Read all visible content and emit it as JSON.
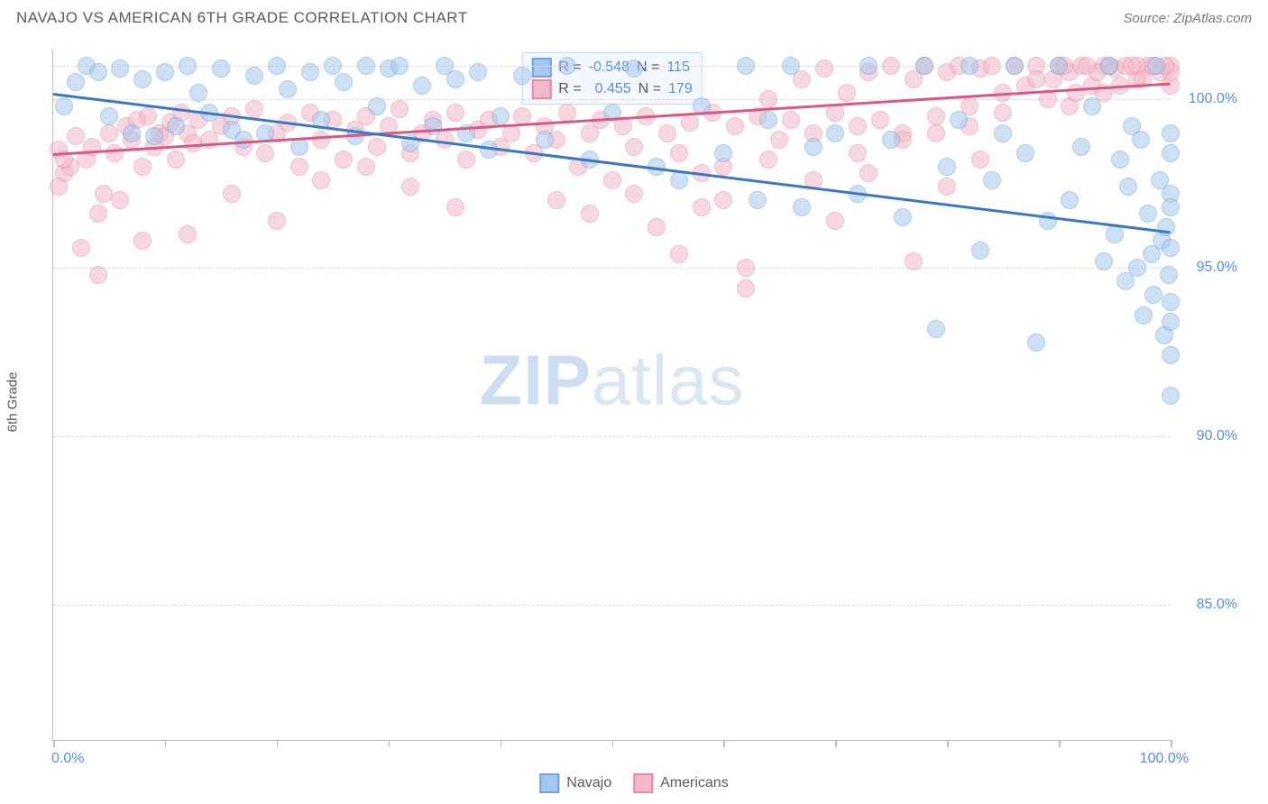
{
  "title": "NAVAJO VS AMERICAN 6TH GRADE CORRELATION CHART",
  "source": "Source: ZipAtlas.com",
  "ylabel": "6th Grade",
  "watermark": {
    "bold": "ZIP",
    "light": "atlas"
  },
  "chart": {
    "type": "scatter",
    "xlim": [
      0,
      100
    ],
    "ylim": [
      81,
      101.5
    ],
    "x_tick_positions": [
      0,
      10,
      20,
      30,
      40,
      50,
      60,
      70,
      80,
      90,
      100
    ],
    "x_tick_labels": {
      "left": "0.0%",
      "right": "100.0%"
    },
    "y_gridlines": [
      85,
      90,
      95,
      100,
      101
    ],
    "y_tick_labels": {
      "85": "85.0%",
      "90": "90.0%",
      "95": "95.0%",
      "100": "100.0%"
    },
    "background_color": "#ffffff",
    "grid_color": "#d9d9d9",
    "axis_color": "#bdbdbd",
    "label_color": "#5a8fd6",
    "marker_radius": 10,
    "marker_opacity": 0.55,
    "series": {
      "navajo": {
        "label": "Navajo",
        "fill": "#a7c7ec",
        "stroke": "#6fa3df",
        "r_value": "-0.548",
        "n_value": "115",
        "trend": {
          "x1": 0,
          "y1": 100.2,
          "x2": 100,
          "y2": 96.1,
          "color": "#3b78c4",
          "width": 2.5
        },
        "points": [
          [
            1,
            99.8
          ],
          [
            2,
            100.5
          ],
          [
            3,
            101
          ],
          [
            4,
            100.8
          ],
          [
            5,
            99.5
          ],
          [
            6,
            100.9
          ],
          [
            7,
            99.0
          ],
          [
            8,
            100.6
          ],
          [
            9,
            98.9
          ],
          [
            10,
            100.8
          ],
          [
            11,
            99.2
          ],
          [
            12,
            101
          ],
          [
            13,
            100.2
          ],
          [
            14,
            99.6
          ],
          [
            15,
            100.9
          ],
          [
            16,
            99.1
          ],
          [
            17,
            98.8
          ],
          [
            18,
            100.7
          ],
          [
            19,
            99.0
          ],
          [
            20,
            101
          ],
          [
            21,
            100.3
          ],
          [
            22,
            98.6
          ],
          [
            23,
            100.8
          ],
          [
            24,
            99.4
          ],
          [
            25,
            101
          ],
          [
            26,
            100.5
          ],
          [
            27,
            98.9
          ],
          [
            28,
            101
          ],
          [
            29,
            99.8
          ],
          [
            30,
            100.9
          ],
          [
            31,
            101
          ],
          [
            32,
            98.7
          ],
          [
            33,
            100.4
          ],
          [
            34,
            99.2
          ],
          [
            35,
            101
          ],
          [
            36,
            100.6
          ],
          [
            37,
            99.0
          ],
          [
            38,
            100.8
          ],
          [
            39,
            98.5
          ],
          [
            40,
            99.5
          ],
          [
            42,
            100.7
          ],
          [
            44,
            98.8
          ],
          [
            46,
            101
          ],
          [
            48,
            98.2
          ],
          [
            50,
            99.6
          ],
          [
            52,
            100.9
          ],
          [
            54,
            98.0
          ],
          [
            56,
            97.6
          ],
          [
            58,
            99.8
          ],
          [
            60,
            98.4
          ],
          [
            62,
            101
          ],
          [
            63,
            97.0
          ],
          [
            64,
            99.4
          ],
          [
            66,
            101
          ],
          [
            67,
            96.8
          ],
          [
            68,
            98.6
          ],
          [
            70,
            99.0
          ],
          [
            72,
            97.2
          ],
          [
            73,
            101
          ],
          [
            75,
            98.8
          ],
          [
            76,
            96.5
          ],
          [
            78,
            101
          ],
          [
            79,
            93.2
          ],
          [
            80,
            98.0
          ],
          [
            81,
            99.4
          ],
          [
            82,
            101
          ],
          [
            83,
            95.5
          ],
          [
            84,
            97.6
          ],
          [
            85,
            99.0
          ],
          [
            86,
            101
          ],
          [
            87,
            98.4
          ],
          [
            88,
            92.8
          ],
          [
            89,
            96.4
          ],
          [
            90,
            101
          ],
          [
            91,
            97.0
          ],
          [
            92,
            98.6
          ],
          [
            93,
            99.8
          ],
          [
            94,
            95.2
          ],
          [
            94.5,
            101
          ],
          [
            95,
            96.0
          ],
          [
            95.5,
            98.2
          ],
          [
            96,
            94.6
          ],
          [
            96.2,
            97.4
          ],
          [
            96.5,
            99.2
          ],
          [
            97,
            95.0
          ],
          [
            97.3,
            98.8
          ],
          [
            97.6,
            93.6
          ],
          [
            98,
            96.6
          ],
          [
            98.3,
            95.4
          ],
          [
            98.5,
            94.2
          ],
          [
            98.7,
            101
          ],
          [
            99,
            97.6
          ],
          [
            99.2,
            95.8
          ],
          [
            99.4,
            93.0
          ],
          [
            99.6,
            96.2
          ],
          [
            99.8,
            94.8
          ],
          [
            100,
            97.2
          ],
          [
            100,
            95.6
          ],
          [
            100,
            93.4
          ],
          [
            100,
            99.0
          ],
          [
            100,
            91.2
          ],
          [
            100,
            94.0
          ],
          [
            100,
            96.8
          ],
          [
            100,
            98.4
          ],
          [
            100,
            92.4
          ]
        ]
      },
      "americans": {
        "label": "Americans",
        "fill": "#f4b9c8",
        "stroke": "#e58aa3",
        "r_value": "0.455",
        "n_value": "179",
        "trend": {
          "x1": 0,
          "y1": 98.4,
          "x2": 100,
          "y2": 100.5,
          "color": "#d65a84",
          "width": 2.5
        },
        "points": [
          [
            0.5,
            98.5
          ],
          [
            1,
            97.8
          ],
          [
            1.5,
            98.0
          ],
          [
            2,
            98.9
          ],
          [
            2.5,
            95.6
          ],
          [
            3,
            98.2
          ],
          [
            3.5,
            98.6
          ],
          [
            4,
            94.8
          ],
          [
            4.5,
            97.2
          ],
          [
            5,
            99.0
          ],
          [
            5.5,
            98.4
          ],
          [
            6,
            97.0
          ],
          [
            6.5,
            99.2
          ],
          [
            7,
            98.8
          ],
          [
            7.5,
            99.4
          ],
          [
            8,
            98.0
          ],
          [
            8.5,
            99.5
          ],
          [
            9,
            98.6
          ],
          [
            9.5,
            99.0
          ],
          [
            10,
            98.9
          ],
          [
            10.5,
            99.3
          ],
          [
            11,
            98.2
          ],
          [
            11.5,
            99.6
          ],
          [
            12,
            99.0
          ],
          [
            12.5,
            98.7
          ],
          [
            13,
            99.4
          ],
          [
            14,
            98.8
          ],
          [
            15,
            99.2
          ],
          [
            16,
            99.5
          ],
          [
            17,
            98.6
          ],
          [
            18,
            99.7
          ],
          [
            19,
            98.4
          ],
          [
            20,
            99.0
          ],
          [
            21,
            99.3
          ],
          [
            22,
            98.0
          ],
          [
            23,
            99.6
          ],
          [
            24,
            98.8
          ],
          [
            25,
            99.4
          ],
          [
            26,
            98.2
          ],
          [
            27,
            99.1
          ],
          [
            28,
            99.5
          ],
          [
            29,
            98.6
          ],
          [
            30,
            99.2
          ],
          [
            31,
            99.7
          ],
          [
            32,
            98.4
          ],
          [
            33,
            99.0
          ],
          [
            34,
            99.4
          ],
          [
            35,
            98.8
          ],
          [
            36,
            99.6
          ],
          [
            37,
            98.2
          ],
          [
            38,
            99.1
          ],
          [
            39,
            99.4
          ],
          [
            40,
            98.6
          ],
          [
            41,
            99.0
          ],
          [
            42,
            99.5
          ],
          [
            43,
            98.4
          ],
          [
            44,
            99.2
          ],
          [
            45,
            98.8
          ],
          [
            46,
            99.6
          ],
          [
            47,
            98.0
          ],
          [
            48,
            99.0
          ],
          [
            49,
            99.4
          ],
          [
            50,
            97.6
          ],
          [
            51,
            99.2
          ],
          [
            52,
            98.6
          ],
          [
            53,
            99.5
          ],
          [
            54,
            96.2
          ],
          [
            55,
            99.0
          ],
          [
            56,
            98.4
          ],
          [
            57,
            99.3
          ],
          [
            58,
            97.8
          ],
          [
            59,
            99.6
          ],
          [
            60,
            98.0
          ],
          [
            61,
            99.2
          ],
          [
            62,
            95.0
          ],
          [
            63,
            99.5
          ],
          [
            64,
            100.0
          ],
          [
            65,
            98.8
          ],
          [
            66,
            99.4
          ],
          [
            67,
            100.6
          ],
          [
            68,
            99.0
          ],
          [
            69,
            100.9
          ],
          [
            70,
            99.6
          ],
          [
            71,
            100.2
          ],
          [
            72,
            99.2
          ],
          [
            73,
            100.8
          ],
          [
            74,
            99.4
          ],
          [
            75,
            101
          ],
          [
            76,
            99.0
          ],
          [
            77,
            100.6
          ],
          [
            78,
            101
          ],
          [
            79,
            99.5
          ],
          [
            80,
            100.8
          ],
          [
            81,
            101
          ],
          [
            82,
            99.2
          ],
          [
            83,
            100.9
          ],
          [
            84,
            101
          ],
          [
            85,
            99.6
          ],
          [
            86,
            101
          ],
          [
            87,
            100.4
          ],
          [
            88,
            101
          ],
          [
            89,
            100.0
          ],
          [
            90,
            101
          ],
          [
            91,
            100.8
          ],
          [
            92,
            101
          ],
          [
            93,
            100.4
          ],
          [
            94,
            101
          ],
          [
            95,
            100.9
          ],
          [
            96,
            101
          ],
          [
            97,
            100.6
          ],
          [
            98,
            101
          ],
          [
            99,
            100.8
          ],
          [
            100,
            101
          ],
          [
            62,
            94.4
          ],
          [
            58,
            96.8
          ],
          [
            52,
            97.2
          ],
          [
            48,
            96.6
          ],
          [
            45,
            97.0
          ],
          [
            70,
            96.4
          ],
          [
            73,
            97.8
          ],
          [
            77,
            95.2
          ],
          [
            80,
            97.4
          ],
          [
            83,
            98.2
          ],
          [
            32,
            97.4
          ],
          [
            28,
            98.0
          ],
          [
            36,
            96.8
          ],
          [
            24,
            97.6
          ],
          [
            20,
            96.4
          ],
          [
            16,
            97.2
          ],
          [
            12,
            96.0
          ],
          [
            8,
            95.8
          ],
          [
            4,
            96.6
          ],
          [
            1,
            98.2
          ],
          [
            0.5,
            97.4
          ],
          [
            56,
            95.4
          ],
          [
            60,
            97.0
          ],
          [
            64,
            98.2
          ],
          [
            68,
            97.6
          ],
          [
            72,
            98.4
          ],
          [
            76,
            98.8
          ],
          [
            79,
            99.0
          ],
          [
            82,
            99.8
          ],
          [
            85,
            100.2
          ],
          [
            88,
            100.6
          ],
          [
            91,
            99.8
          ],
          [
            94,
            100.2
          ],
          [
            97,
            101
          ],
          [
            100,
            100.4
          ],
          [
            100,
            100.8
          ],
          [
            99.5,
            101
          ],
          [
            98.5,
            101
          ],
          [
            97.5,
            100.6
          ],
          [
            96.5,
            101
          ],
          [
            95.5,
            100.4
          ],
          [
            94.5,
            101
          ],
          [
            93.5,
            100.8
          ],
          [
            92.5,
            101
          ],
          [
            91.5,
            100.2
          ],
          [
            90.5,
            101
          ],
          [
            89.5,
            100.6
          ]
        ]
      }
    }
  },
  "legend_box": {
    "bg": "#f5f9ff",
    "border": "#c6d8f0",
    "r_label": "R =",
    "n_label": "N ="
  }
}
